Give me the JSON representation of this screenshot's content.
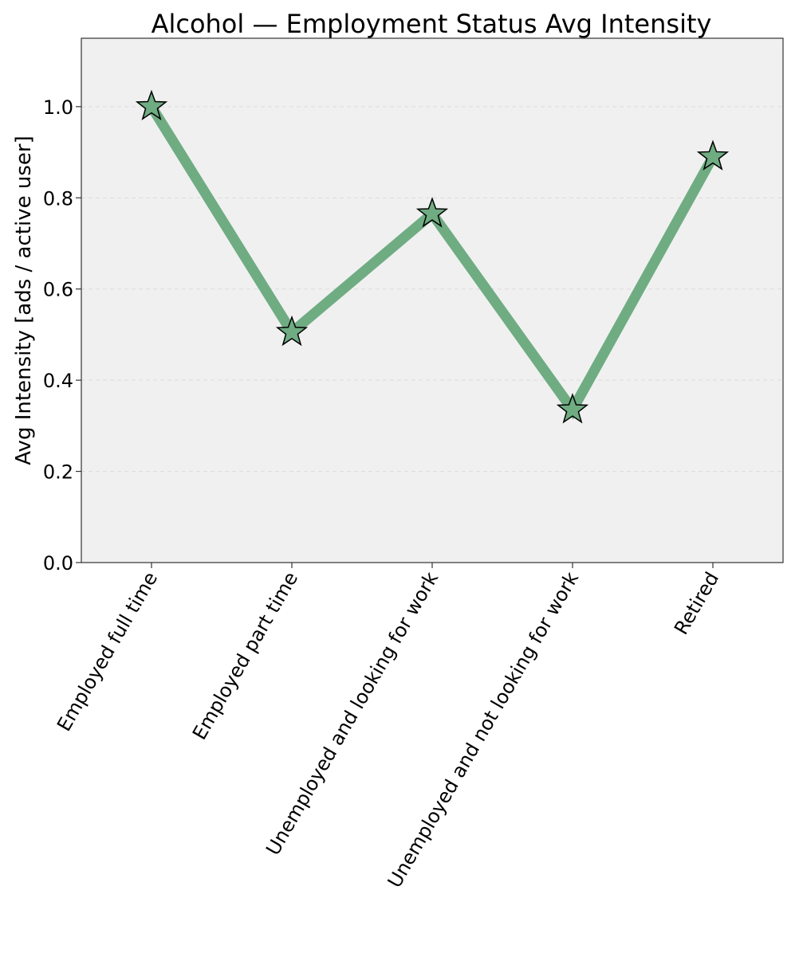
{
  "chart_data": {
    "type": "line",
    "title": "Alcohol — Employment Status Avg Intensity",
    "xlabel": "",
    "ylabel": "Avg Intensity [ads / active user]",
    "categories": [
      "Employed full time",
      "Employed part time",
      "Unemployed and looking for work",
      "Unemployed and not looking for work",
      "Retired"
    ],
    "series": [
      {
        "values": [
          1.0,
          0.505,
          0.765,
          0.335,
          0.89
        ]
      }
    ],
    "ylim": [
      0,
      1.15
    ],
    "yticks": [
      0.0,
      0.2,
      0.4,
      0.6,
      0.8,
      1.0
    ],
    "ytick_labels": [
      "0.0",
      "0.2",
      "0.4",
      "0.6",
      "0.8",
      "1.0"
    ],
    "grid": "y-dashed",
    "marker": "star",
    "colors": {
      "line": "#6fac82",
      "marker_fill": "#6fac82",
      "marker_edge": "#000000",
      "plot_bg": "#f0f0f0",
      "grid": "#dcdcdc"
    }
  }
}
